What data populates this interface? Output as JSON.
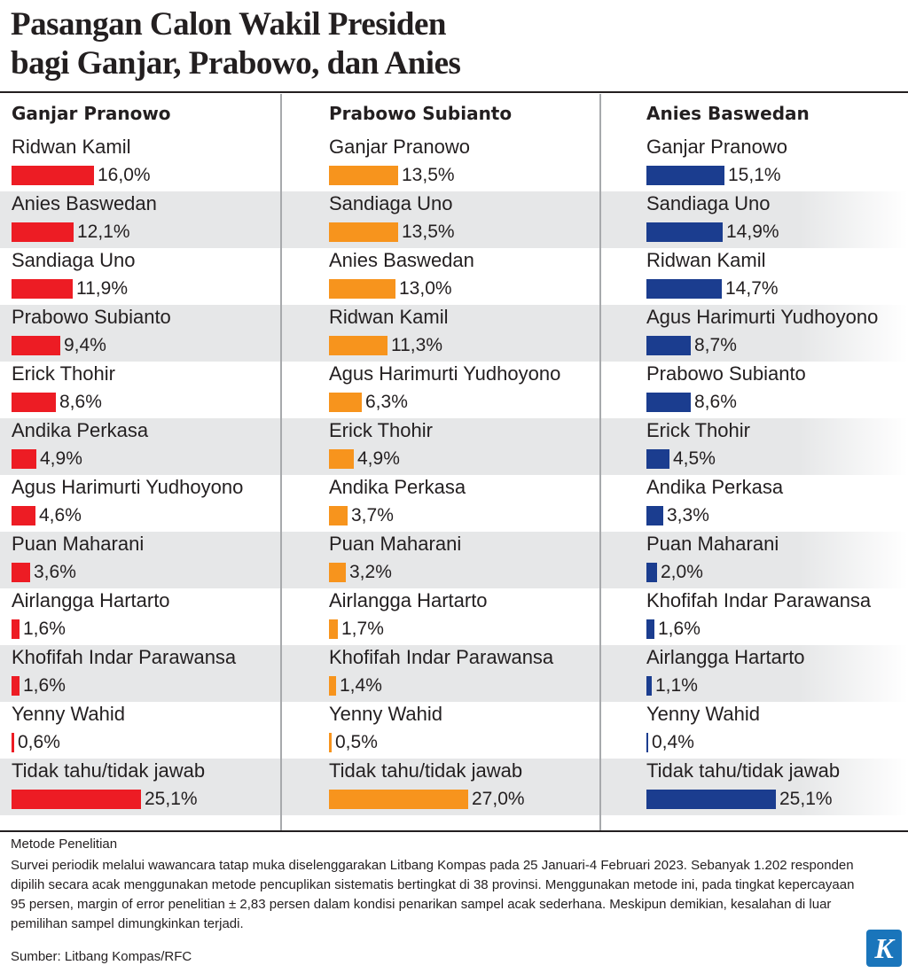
{
  "title": {
    "line1": "Pasangan Calon Wakil Presiden",
    "line2": "bagi Ganjar, Prabowo, dan Anies"
  },
  "chart_data": {
    "type": "bar",
    "unit": "%",
    "panels": [
      {
        "name": "Ganjar Pranowo",
        "color": "#ed1c24",
        "items": [
          {
            "label": "Ridwan Kamil",
            "value": 16.0,
            "text": "16,0%"
          },
          {
            "label": "Anies Baswedan",
            "value": 12.1,
            "text": "12,1%"
          },
          {
            "label": "Sandiaga Uno",
            "value": 11.9,
            "text": "11,9%"
          },
          {
            "label": "Prabowo Subianto",
            "value": 9.4,
            "text": "9,4%"
          },
          {
            "label": "Erick Thohir",
            "value": 8.6,
            "text": "8,6%"
          },
          {
            "label": "Andika Perkasa",
            "value": 4.9,
            "text": "4,9%"
          },
          {
            "label": "Agus Harimurti Yudhoyono",
            "value": 4.6,
            "text": "4,6%"
          },
          {
            "label": "Puan Maharani",
            "value": 3.6,
            "text": "3,6%"
          },
          {
            "label": "Airlangga Hartarto",
            "value": 1.6,
            "text": "1,6%"
          },
          {
            "label": "Khofifah Indar Parawansa",
            "value": 1.6,
            "text": "1,6%"
          },
          {
            "label": "Yenny Wahid",
            "value": 0.6,
            "text": "0,6%"
          },
          {
            "label": "Tidak tahu/tidak jawab",
            "value": 25.1,
            "text": "25,1%"
          }
        ]
      },
      {
        "name": "Prabowo Subianto",
        "color": "#f7941d",
        "items": [
          {
            "label": "Ganjar Pranowo",
            "value": 13.5,
            "text": "13,5%"
          },
          {
            "label": "Sandiaga Uno",
            "value": 13.5,
            "text": "13,5%"
          },
          {
            "label": "Anies Baswedan",
            "value": 13.0,
            "text": "13,0%"
          },
          {
            "label": "Ridwan Kamil",
            "value": 11.3,
            "text": "11,3%"
          },
          {
            "label": "Agus Harimurti Yudhoyono",
            "value": 6.3,
            "text": "6,3%"
          },
          {
            "label": "Erick Thohir",
            "value": 4.9,
            "text": "4,9%"
          },
          {
            "label": "Andika Perkasa",
            "value": 3.7,
            "text": "3,7%"
          },
          {
            "label": "Puan Maharani",
            "value": 3.2,
            "text": "3,2%"
          },
          {
            "label": "Airlangga Hartarto",
            "value": 1.7,
            "text": "1,7%"
          },
          {
            "label": "Khofifah Indar Parawansa",
            "value": 1.4,
            "text": "1,4%"
          },
          {
            "label": "Yenny Wahid",
            "value": 0.5,
            "text": "0,5%"
          },
          {
            "label": "Tidak tahu/tidak jawab",
            "value": 27.0,
            "text": "27,0%"
          }
        ]
      },
      {
        "name": "Anies Baswedan",
        "color": "#1b3d8f",
        "items": [
          {
            "label": "Ganjar Pranowo",
            "value": 15.1,
            "text": "15,1%"
          },
          {
            "label": "Sandiaga Uno",
            "value": 14.9,
            "text": "14,9%"
          },
          {
            "label": "Ridwan Kamil",
            "value": 14.7,
            "text": "14,7%"
          },
          {
            "label": "Agus Harimurti Yudhoyono",
            "value": 8.7,
            "text": "8,7%"
          },
          {
            "label": "Prabowo Subianto",
            "value": 8.6,
            "text": "8,6%"
          },
          {
            "label": "Erick Thohir",
            "value": 4.5,
            "text": "4,5%"
          },
          {
            "label": "Andika Perkasa",
            "value": 3.3,
            "text": "3,3%"
          },
          {
            "label": "Puan Maharani",
            "value": 2.0,
            "text": "2,0%"
          },
          {
            "label": "Khofifah Indar Parawansa",
            "value": 1.6,
            "text": "1,6%"
          },
          {
            "label": "Airlangga Hartarto",
            "value": 1.1,
            "text": "1,1%"
          },
          {
            "label": "Yenny Wahid",
            "value": 0.4,
            "text": "0,4%"
          },
          {
            "label": "Tidak tahu/tidak jawab",
            "value": 25.1,
            "text": "25,1%"
          }
        ]
      }
    ]
  },
  "methodology": {
    "title": "Metode Penelitian",
    "text": "Survei periodik melalui wawancara tatap muka diselenggarakan Litbang Kompas pada 25 Januari-4 Februari 2023. Sebanyak 1.202 responden dipilih secara acak menggunakan metode pencuplikan sistematis bertingkat di 38 provinsi. Menggunakan metode ini, pada tingkat kepercayaan 95 persen, margin of error penelitian ± 2,83 persen dalam kondisi penarikan sampel acak sederhana. Meskipun demikian, kesalahan di luar pemilihan sampel dimungkinkan terjadi."
  },
  "source": "Sumber: Litbang Kompas/RFC",
  "logo": {
    "letter": "K",
    "color": "#1a75bb"
  }
}
